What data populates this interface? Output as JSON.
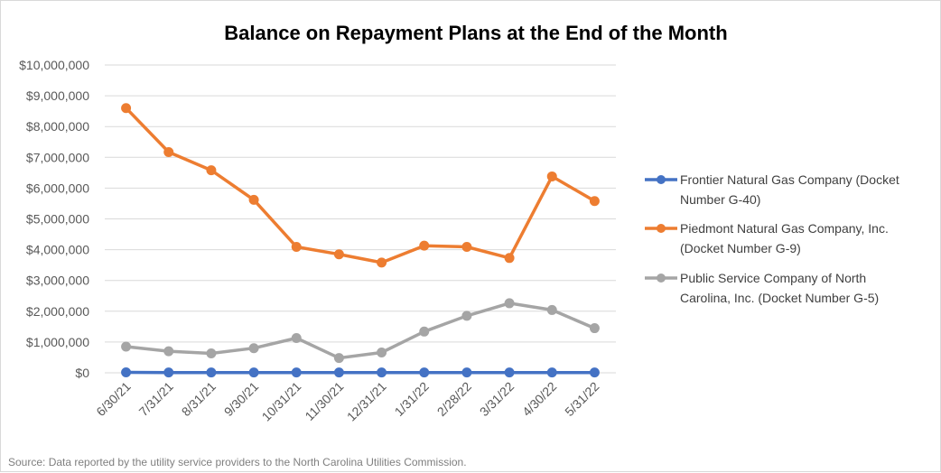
{
  "chart_data": {
    "type": "line",
    "title": "Balance on Repayment Plans at the End of the Month",
    "categories": [
      "6/30/21",
      "7/31/21",
      "8/31/21",
      "9/30/21",
      "10/31/21",
      "11/30/21",
      "12/31/21",
      "1/31/22",
      "2/28/22",
      "3/31/22",
      "4/30/22",
      "5/31/22"
    ],
    "ylim": [
      0,
      10000000
    ],
    "yticks": [
      0,
      1000000,
      2000000,
      3000000,
      4000000,
      5000000,
      6000000,
      7000000,
      8000000,
      9000000,
      10000000
    ],
    "ytick_labels": [
      "$0",
      "$1,000,000",
      "$2,000,000",
      "$3,000,000",
      "$4,000,000",
      "$5,000,000",
      "$6,000,000",
      "$7,000,000",
      "$8,000,000",
      "$9,000,000",
      "$10,000,000"
    ],
    "grid": true,
    "legend_position": "right",
    "series": [
      {
        "name": "Frontier Natural Gas Company (Docket Number G-40)",
        "legend_lines": [
          "Frontier Natural Gas Company (Docket",
          "Number G-40)"
        ],
        "color": "#4472c4",
        "values": [
          15000,
          10000,
          10000,
          10000,
          10000,
          10000,
          10000,
          10000,
          10000,
          10000,
          10000,
          10000
        ]
      },
      {
        "name": "Piedmont Natural Gas Company, Inc. (Docket Number G-9)",
        "legend_lines": [
          "Piedmont Natural Gas Company, Inc.",
          "(Docket Number G-9)"
        ],
        "color": "#ed7d31",
        "values": [
          8600000,
          7170000,
          6580000,
          5620000,
          4090000,
          3850000,
          3580000,
          4130000,
          4090000,
          3730000,
          6380000,
          5580000
        ]
      },
      {
        "name": "Public Service Company of North Carolina, Inc. (Docket Number G-5)",
        "legend_lines": [
          "Public Service Company of North",
          "Carolina, Inc. (Docket Number G-5)"
        ],
        "color": "#a5a5a5",
        "values": [
          850000,
          700000,
          630000,
          800000,
          1130000,
          480000,
          660000,
          1340000,
          1850000,
          2260000,
          2040000,
          1450000
        ]
      }
    ]
  },
  "source_note": "Source: Data reported by the utility service providers to the North Carolina Utilities Commission."
}
